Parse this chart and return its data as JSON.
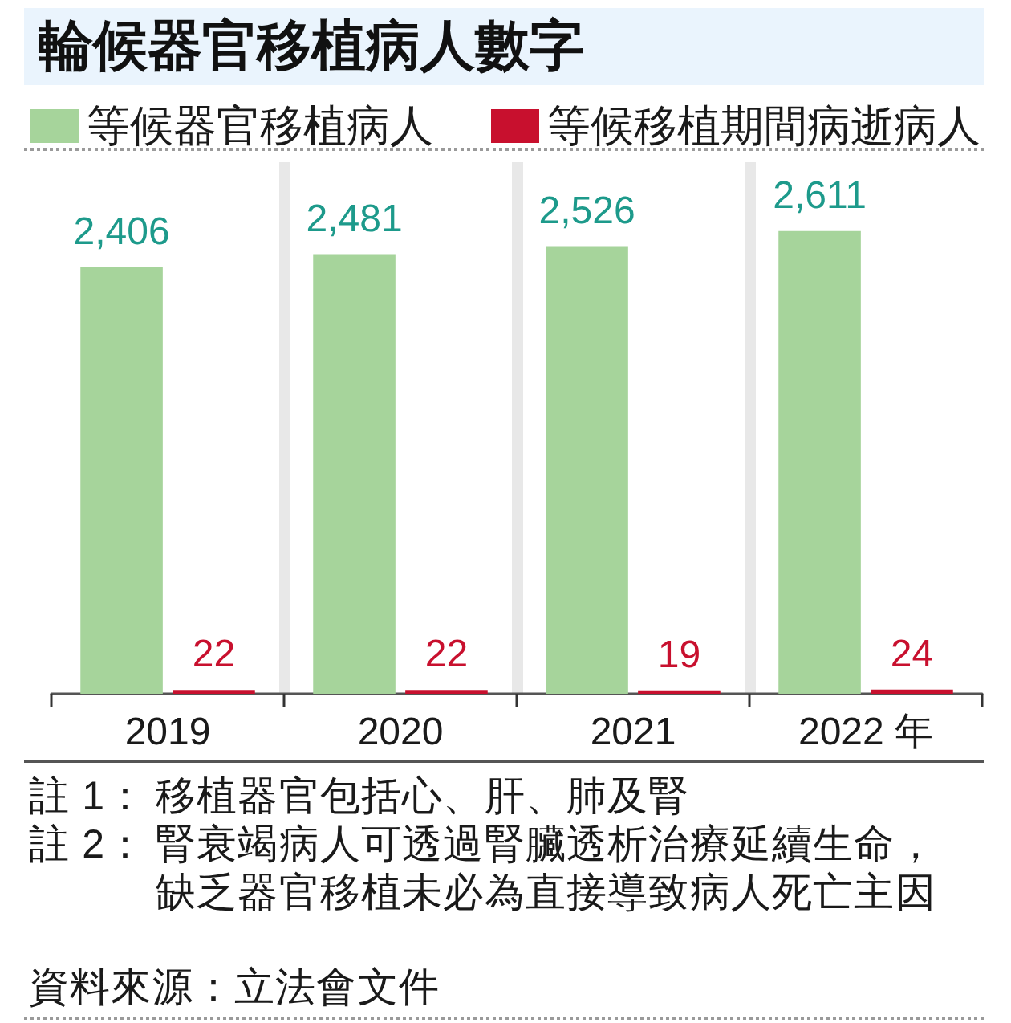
{
  "chart_data": {
    "type": "bar",
    "title": "輪候器官移植病人數字",
    "categories": [
      "2019",
      "2020",
      "2021",
      "2022 年"
    ],
    "series": [
      {
        "name": "等候器官移植病人",
        "color": "#a6d49b",
        "values": [
          2406,
          2481,
          2526,
          2611
        ],
        "value_labels": [
          "2,406",
          "2,481",
          "2,526",
          "2,611"
        ]
      },
      {
        "name": "等候移植期間病逝病人",
        "color": "#c8102e",
        "values": [
          22,
          22,
          19,
          24
        ],
        "value_labels": [
          "22",
          "22",
          "19",
          "24"
        ]
      }
    ],
    "legend": "top",
    "grid": "x",
    "tick_labels": "x",
    "annotations": [
      "註 1：移植器官包括心、肝、肺及腎",
      "註 2：腎衰竭病人可透過腎臟透析治療延續生命，缺乏器官移植未必為直接導致病人死亡主因",
      "資料來源：立法會文件"
    ]
  }
}
